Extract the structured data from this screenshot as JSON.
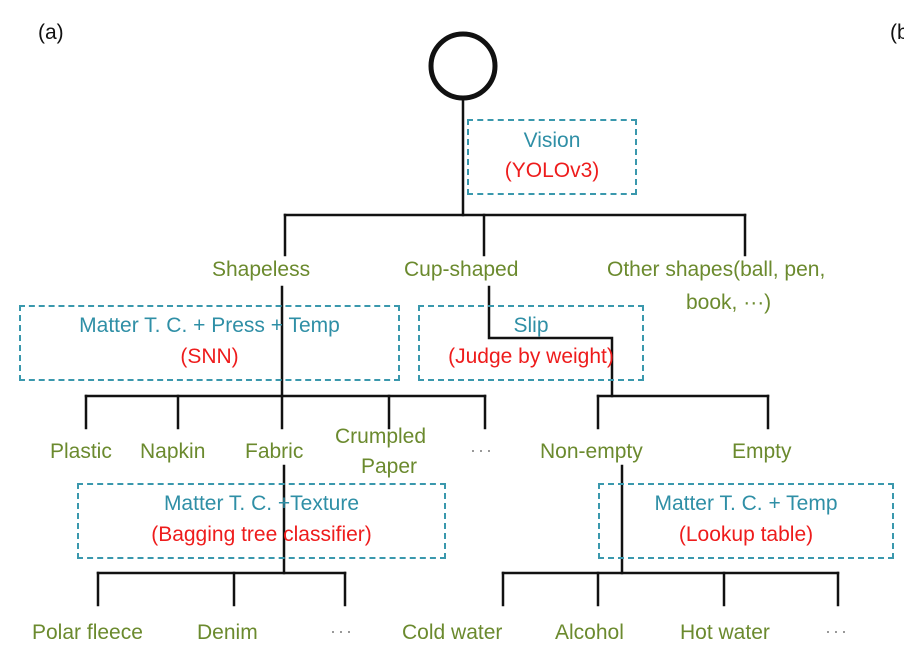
{
  "panel_a_label": "(a)",
  "panel_b_label": "(b",
  "vision_box": {
    "line1": "Vision",
    "line2": "(YOLOv3)"
  },
  "shapes": {
    "shapeless": "Shapeless",
    "cup": "Cup-shaped",
    "other_line1": "Other shapes(ball, pen,",
    "other_line2": "book, ···)"
  },
  "snn_box": {
    "line1": "Matter T. C. + Press + Temp",
    "line2": "(SNN)"
  },
  "slip_box": {
    "line1": "Slip",
    "line2": "(Judge by weight)"
  },
  "shapeless_children": {
    "plastic": "Plastic",
    "napkin": "Napkin",
    "fabric": "Fabric",
    "crumpled_line1": "Crumpled",
    "crumpled_line2": "Paper",
    "more": "···"
  },
  "cup_children": {
    "nonempty": "Non-empty",
    "empty": "Empty"
  },
  "texture_box": {
    "line1": "Matter T. C. +Texture",
    "line2": "(Bagging tree classifier)"
  },
  "temp_box": {
    "line1": "Matter T. C. + Temp",
    "line2": "(Lookup table)"
  },
  "fabric_children": {
    "polar": "Polar fleece",
    "denim": "Denim",
    "more": "···"
  },
  "liquid_children": {
    "cold": "Cold water",
    "alcohol": "Alcohol",
    "hot": "Hot water",
    "more": "···"
  }
}
